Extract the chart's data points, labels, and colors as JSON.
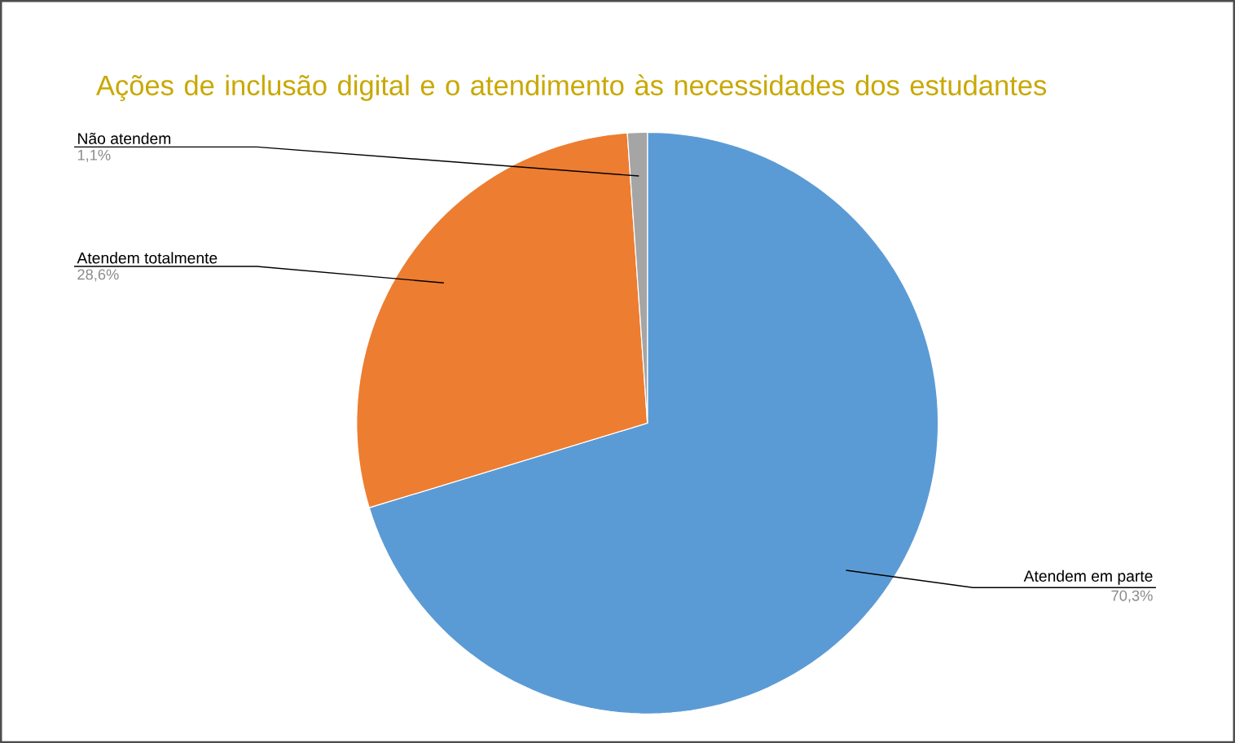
{
  "chart_data": {
    "type": "pie",
    "title": "Ações de inclusão digital e o atendimento às necessidades dos estudantes",
    "categories": [
      "Atendem em parte",
      "Atendem totalmente",
      "Não atendem"
    ],
    "values": [
      70.3,
      28.6,
      1.1
    ],
    "value_labels": [
      "70,3%",
      "28,6%",
      "1,1%"
    ],
    "colors": [
      "#5b9bd5",
      "#ed7d31",
      "#a5a5a5"
    ]
  }
}
